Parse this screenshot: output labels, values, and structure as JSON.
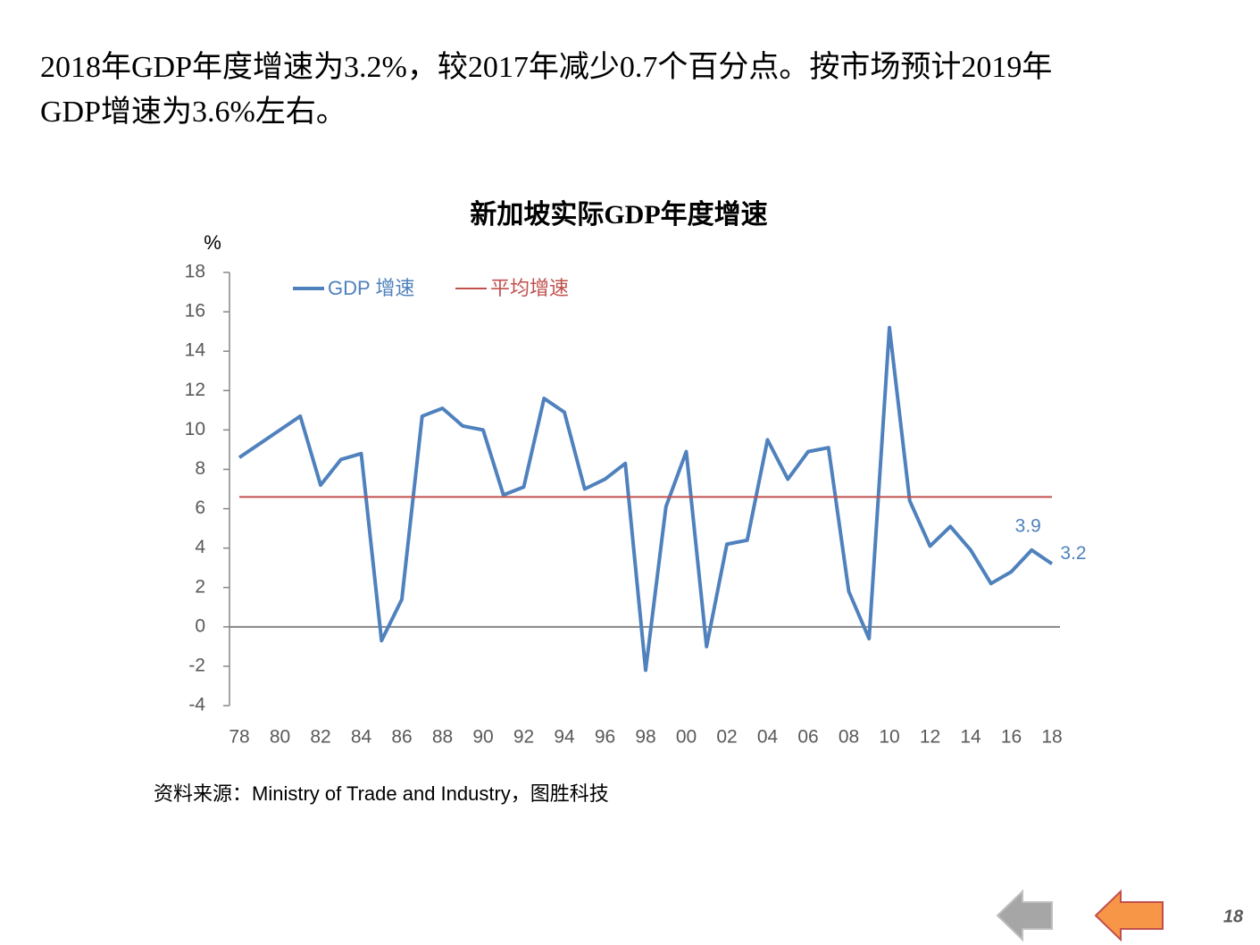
{
  "heading": [
    "2018年GDP年度增速为3.2%，较2017年减少0.7个百分点。按市场预计2019年",
    "GDP增速为3.6%左右。"
  ],
  "chart_data": {
    "type": "line",
    "title": "新加坡实际GDP年度增速",
    "y_label": "%",
    "categories": [
      "78",
      null,
      "80",
      null,
      "82",
      null,
      "84",
      null,
      "86",
      null,
      "88",
      null,
      "90",
      null,
      "92",
      null,
      "94",
      null,
      "96",
      null,
      "98",
      null,
      "00",
      null,
      "02",
      null,
      "04",
      null,
      "06",
      null,
      "08",
      null,
      "10",
      null,
      "12",
      null,
      "14",
      null,
      "16",
      null,
      "18"
    ],
    "series": [
      {
        "name": "GDP 增速",
        "color": "#4f81bd",
        "values": [
          8.6,
          9.3,
          10.0,
          10.7,
          7.2,
          8.5,
          8.8,
          -0.7,
          1.4,
          10.7,
          11.1,
          10.2,
          10.0,
          6.7,
          7.1,
          11.6,
          10.9,
          7.0,
          7.5,
          8.3,
          -2.2,
          6.1,
          8.9,
          -1.0,
          4.2,
          4.4,
          9.5,
          7.5,
          8.9,
          9.1,
          1.8,
          -0.6,
          15.2,
          6.4,
          4.1,
          5.1,
          3.9,
          2.2,
          2.8,
          3.9,
          3.2
        ],
        "value_labels": [
          null,
          null,
          null,
          null,
          null,
          null,
          null,
          null,
          null,
          null,
          null,
          null,
          null,
          null,
          null,
          null,
          null,
          null,
          null,
          null,
          null,
          null,
          null,
          null,
          null,
          null,
          null,
          null,
          null,
          null,
          null,
          null,
          null,
          null,
          null,
          null,
          null,
          null,
          null,
          "3.9",
          "3.2"
        ]
      },
      {
        "name": "平均增速",
        "color": "#c0504d",
        "value": 6.6
      }
    ],
    "ylim": [
      -4,
      18
    ],
    "yticks": [
      -4,
      -2,
      0,
      2,
      4,
      6,
      8,
      10,
      12,
      14,
      16,
      18
    ],
    "source": "资料来源：Ministry of Trade and Industry，图胜科技"
  },
  "page_number": "18"
}
